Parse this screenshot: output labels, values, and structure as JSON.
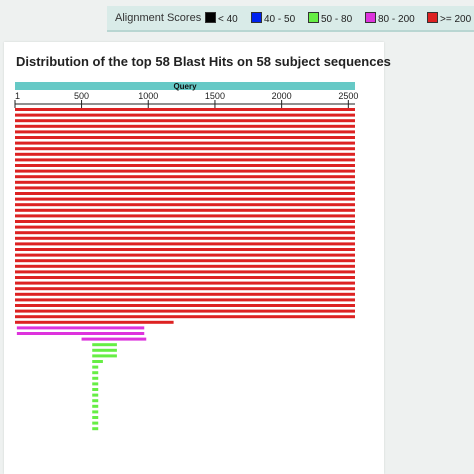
{
  "legend": {
    "title": "Alignment Scores",
    "items": [
      {
        "label": "< 40",
        "color": "#000000"
      },
      {
        "label": "40 - 50",
        "color": "#0022ee"
      },
      {
        "label": "50 - 80",
        "color": "#66ee44"
      },
      {
        "label": "80 - 200",
        "color": "#dd33dd"
      },
      {
        "label": ">= 200",
        "color": "#dd2222"
      }
    ]
  },
  "title": "Distribution of the top 58 Blast Hits on 58 subject sequences",
  "chart_data": {
    "type": "bar",
    "query_label": "Query",
    "query_length": 2550,
    "ticks": [
      1,
      500,
      1000,
      1500,
      2000,
      2500
    ],
    "hits": [
      {
        "start": 1,
        "end": 2550,
        "color": "#dd2222"
      },
      {
        "start": 1,
        "end": 2550,
        "color": "#dd2222"
      },
      {
        "start": 1,
        "end": 2550,
        "color": "#dd2222"
      },
      {
        "start": 1,
        "end": 2550,
        "color": "#dd2222"
      },
      {
        "start": 1,
        "end": 2550,
        "color": "#dd2222"
      },
      {
        "start": 1,
        "end": 2550,
        "color": "#dd2222"
      },
      {
        "start": 1,
        "end": 2550,
        "color": "#dd2222"
      },
      {
        "start": 1,
        "end": 2550,
        "color": "#dd2222"
      },
      {
        "start": 1,
        "end": 2550,
        "color": "#dd2222"
      },
      {
        "start": 1,
        "end": 2550,
        "color": "#dd2222"
      },
      {
        "start": 1,
        "end": 2550,
        "color": "#dd2222"
      },
      {
        "start": 1,
        "end": 2550,
        "color": "#dd2222"
      },
      {
        "start": 1,
        "end": 2550,
        "color": "#dd2222"
      },
      {
        "start": 1,
        "end": 2550,
        "color": "#dd2222"
      },
      {
        "start": 1,
        "end": 2550,
        "color": "#dd2222"
      },
      {
        "start": 1,
        "end": 2550,
        "color": "#dd2222"
      },
      {
        "start": 1,
        "end": 2550,
        "color": "#dd2222"
      },
      {
        "start": 1,
        "end": 2550,
        "color": "#dd2222"
      },
      {
        "start": 1,
        "end": 2550,
        "color": "#dd2222"
      },
      {
        "start": 1,
        "end": 2550,
        "color": "#dd2222"
      },
      {
        "start": 1,
        "end": 2550,
        "color": "#dd2222"
      },
      {
        "start": 1,
        "end": 2550,
        "color": "#dd2222"
      },
      {
        "start": 1,
        "end": 2550,
        "color": "#dd2222"
      },
      {
        "start": 1,
        "end": 2550,
        "color": "#dd2222"
      },
      {
        "start": 1,
        "end": 2550,
        "color": "#dd2222"
      },
      {
        "start": 1,
        "end": 2550,
        "color": "#dd2222"
      },
      {
        "start": 1,
        "end": 2550,
        "color": "#dd2222"
      },
      {
        "start": 1,
        "end": 2550,
        "color": "#dd2222"
      },
      {
        "start": 1,
        "end": 2550,
        "color": "#dd2222"
      },
      {
        "start": 1,
        "end": 2550,
        "color": "#dd2222"
      },
      {
        "start": 1,
        "end": 2550,
        "color": "#dd2222"
      },
      {
        "start": 1,
        "end": 2550,
        "color": "#dd2222"
      },
      {
        "start": 1,
        "end": 2550,
        "color": "#dd2222"
      },
      {
        "start": 1,
        "end": 2550,
        "color": "#dd2222"
      },
      {
        "start": 1,
        "end": 2550,
        "color": "#dd2222"
      },
      {
        "start": 1,
        "end": 2550,
        "color": "#dd2222"
      },
      {
        "start": 1,
        "end": 2550,
        "color": "#dd2222"
      },
      {
        "start": 1,
        "end": 2550,
        "color": "#dd2222"
      },
      {
        "start": 1,
        "end": 1190,
        "color": "#dd2222"
      },
      {
        "start": 15,
        "end": 970,
        "color": "#dd33dd"
      },
      {
        "start": 15,
        "end": 970,
        "color": "#dd33dd"
      },
      {
        "start": 500,
        "end": 985,
        "color": "#dd33dd"
      },
      {
        "start": 580,
        "end": 765,
        "color": "#66ee44"
      },
      {
        "start": 580,
        "end": 765,
        "color": "#66ee44"
      },
      {
        "start": 580,
        "end": 765,
        "color": "#66ee44"
      },
      {
        "start": 580,
        "end": 660,
        "color": "#66ee44"
      },
      {
        "start": 580,
        "end": 625,
        "color": "#66ee44"
      },
      {
        "start": 580,
        "end": 625,
        "color": "#66ee44"
      },
      {
        "start": 580,
        "end": 625,
        "color": "#66ee44"
      },
      {
        "start": 580,
        "end": 625,
        "color": "#66ee44"
      },
      {
        "start": 580,
        "end": 625,
        "color": "#66ee44"
      },
      {
        "start": 580,
        "end": 625,
        "color": "#66ee44"
      },
      {
        "start": 580,
        "end": 625,
        "color": "#66ee44"
      },
      {
        "start": 580,
        "end": 625,
        "color": "#66ee44"
      },
      {
        "start": 580,
        "end": 625,
        "color": "#66ee44"
      },
      {
        "start": 580,
        "end": 625,
        "color": "#66ee44"
      },
      {
        "start": 580,
        "end": 625,
        "color": "#66ee44"
      },
      {
        "start": 580,
        "end": 625,
        "color": "#66ee44"
      }
    ]
  }
}
